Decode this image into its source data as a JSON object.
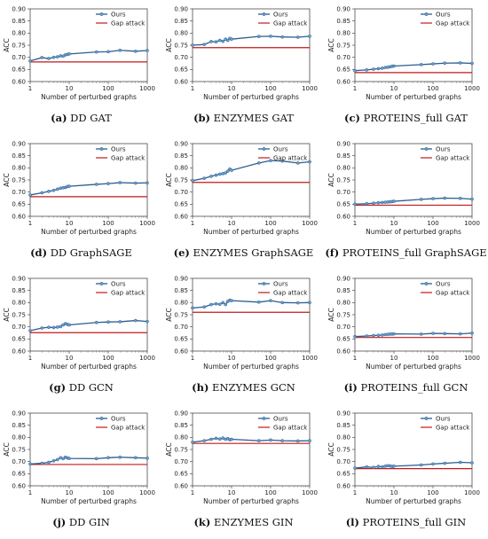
{
  "colors": {
    "ours": "#2b5d8a",
    "ours_marker": "#6a9fd0",
    "gap": "#c0191c"
  },
  "chart_data": [
    {
      "type": "line",
      "letter": "(a)",
      "caption": "DD GAT",
      "xlabel": "Number of perturbed graphs",
      "ylabel": "ACC",
      "xscale": "log",
      "xlim": [
        1,
        1000
      ],
      "ylim": [
        0.6,
        0.9
      ],
      "yticks": [
        "0.60",
        "0.65",
        "0.70",
        "0.75",
        "0.80",
        "0.85",
        "0.90"
      ],
      "xticks": [
        "1",
        "10",
        "100",
        "1000"
      ],
      "legend": "top-right",
      "series": [
        {
          "name": "Ours",
          "x": [
            1,
            2,
            3,
            4,
            5,
            6,
            7,
            8,
            9,
            10,
            50,
            100,
            200,
            500,
            1000
          ],
          "y": [
            0.685,
            0.699,
            0.695,
            0.7,
            0.702,
            0.706,
            0.705,
            0.71,
            0.712,
            0.714,
            0.722,
            0.723,
            0.729,
            0.725,
            0.728
          ]
        },
        {
          "name": "Gap attack",
          "x": [
            1,
            1000
          ],
          "y": [
            0.681,
            0.681
          ]
        }
      ]
    },
    {
      "type": "line",
      "letter": "(b)",
      "caption": "ENZYMES GAT",
      "xlabel": "Number of perturbed graphs",
      "ylabel": "ACC",
      "xscale": "log",
      "xlim": [
        1,
        1000
      ],
      "ylim": [
        0.6,
        0.9
      ],
      "yticks": [
        "0.60",
        "0.65",
        "0.70",
        "0.75",
        "0.80",
        "0.85",
        "0.90"
      ],
      "xticks": [
        "1",
        "10",
        "100",
        "1000"
      ],
      "legend": "top-right",
      "series": [
        {
          "name": "Ours",
          "x": [
            1,
            2,
            3,
            4,
            5,
            6,
            7,
            8,
            9,
            10,
            50,
            100,
            200,
            500,
            1000
          ],
          "y": [
            0.75,
            0.753,
            0.765,
            0.764,
            0.77,
            0.766,
            0.775,
            0.77,
            0.778,
            0.775,
            0.786,
            0.787,
            0.784,
            0.783,
            0.787
          ]
        },
        {
          "name": "Gap attack",
          "x": [
            1,
            1000
          ],
          "y": [
            0.74,
            0.74
          ]
        }
      ]
    },
    {
      "type": "line",
      "letter": "(c)",
      "caption": "PROTEINS_full GAT",
      "xlabel": "Number of perturbed graphs",
      "ylabel": "ACC",
      "xscale": "log",
      "xlim": [
        1,
        1000
      ],
      "ylim": [
        0.6,
        0.9
      ],
      "yticks": [
        "0.60",
        "0.65",
        "0.70",
        "0.75",
        "0.80",
        "0.85",
        "0.90"
      ],
      "xticks": [
        "1",
        "10",
        "100",
        "1000"
      ],
      "legend": "top-right",
      "series": [
        {
          "name": "Ours",
          "x": [
            1,
            2,
            3,
            4,
            5,
            6,
            7,
            8,
            9,
            10,
            50,
            100,
            200,
            500,
            1000
          ],
          "y": [
            0.645,
            0.648,
            0.651,
            0.653,
            0.655,
            0.658,
            0.659,
            0.661,
            0.663,
            0.664,
            0.67,
            0.673,
            0.676,
            0.677,
            0.675
          ]
        },
        {
          "name": "Gap attack",
          "x": [
            1,
            1000
          ],
          "y": [
            0.637,
            0.637
          ]
        }
      ]
    },
    {
      "type": "line",
      "letter": "(d)",
      "caption": "DD GraphSAGE",
      "xlabel": "Number of perturbed graphs",
      "ylabel": "ACC",
      "xscale": "log",
      "xlim": [
        1,
        1000
      ],
      "ylim": [
        0.6,
        0.9
      ],
      "yticks": [
        "0.60",
        "0.65",
        "0.70",
        "0.75",
        "0.80",
        "0.85",
        "0.90"
      ],
      "xticks": [
        "1",
        "10",
        "100",
        "1000"
      ],
      "legend": "top-right",
      "series": [
        {
          "name": "Ours",
          "x": [
            1,
            2,
            3,
            4,
            5,
            6,
            7,
            8,
            9,
            10,
            50,
            100,
            200,
            500,
            1000
          ],
          "y": [
            0.688,
            0.697,
            0.703,
            0.707,
            0.712,
            0.716,
            0.718,
            0.719,
            0.723,
            0.724,
            0.732,
            0.735,
            0.739,
            0.737,
            0.738
          ]
        },
        {
          "name": "Gap attack",
          "x": [
            1,
            1000
          ],
          "y": [
            0.681,
            0.681
          ]
        }
      ]
    },
    {
      "type": "line",
      "letter": "(e)",
      "caption": "ENZYMES GraphSAGE",
      "xlabel": "Number of perturbed graphs",
      "ylabel": "ACC",
      "xscale": "log",
      "xlim": [
        1,
        1000
      ],
      "ylim": [
        0.6,
        0.9
      ],
      "yticks": [
        "0.60",
        "0.65",
        "0.70",
        "0.75",
        "0.80",
        "0.85",
        "0.90"
      ],
      "xticks": [
        "1",
        "10",
        "100",
        "1000"
      ],
      "legend": "top-right",
      "series": [
        {
          "name": "Ours",
          "x": [
            1,
            2,
            3,
            4,
            5,
            6,
            7,
            8,
            9,
            10,
            50,
            100,
            200,
            500,
            1000
          ],
          "y": [
            0.747,
            0.757,
            0.765,
            0.77,
            0.774,
            0.776,
            0.779,
            0.786,
            0.795,
            0.79,
            0.82,
            0.83,
            0.828,
            0.82,
            0.825
          ]
        },
        {
          "name": "Gap attack",
          "x": [
            1,
            1000
          ],
          "y": [
            0.74,
            0.74
          ]
        }
      ]
    },
    {
      "type": "line",
      "letter": "(f)",
      "caption": "PROTEINS_full GraphSAGE",
      "xlabel": "Number of perturbed graphs",
      "ylabel": "ACC",
      "xscale": "log",
      "xlim": [
        1,
        1000
      ],
      "ylim": [
        0.6,
        0.9
      ],
      "yticks": [
        "0.60",
        "0.65",
        "0.70",
        "0.75",
        "0.80",
        "0.85",
        "0.90"
      ],
      "xticks": [
        "1",
        "10",
        "100",
        "1000"
      ],
      "legend": "top-right",
      "series": [
        {
          "name": "Ours",
          "x": [
            1,
            2,
            3,
            4,
            5,
            6,
            7,
            8,
            9,
            10,
            50,
            100,
            200,
            500,
            1000
          ],
          "y": [
            0.65,
            0.652,
            0.654,
            0.656,
            0.657,
            0.658,
            0.659,
            0.66,
            0.661,
            0.662,
            0.67,
            0.673,
            0.675,
            0.674,
            0.671
          ]
        },
        {
          "name": "Gap attack",
          "x": [
            1,
            1000
          ],
          "y": [
            0.646,
            0.646
          ]
        }
      ]
    },
    {
      "type": "line",
      "letter": "(g)",
      "caption": "DD GCN",
      "xlabel": "Number of perturbed graphs",
      "ylabel": "ACC",
      "xscale": "log",
      "xlim": [
        1,
        1000
      ],
      "ylim": [
        0.6,
        0.9
      ],
      "yticks": [
        "0.60",
        "0.65",
        "0.70",
        "0.75",
        "0.80",
        "0.85",
        "0.90"
      ],
      "xticks": [
        "1",
        "10",
        "100",
        "1000"
      ],
      "legend": "top-right",
      "series": [
        {
          "name": "Ours",
          "x": [
            1,
            2,
            3,
            4,
            5,
            6,
            7,
            8,
            9,
            10,
            50,
            100,
            200,
            500,
            1000
          ],
          "y": [
            0.684,
            0.695,
            0.698,
            0.697,
            0.699,
            0.701,
            0.708,
            0.713,
            0.71,
            0.708,
            0.718,
            0.72,
            0.721,
            0.726,
            0.722
          ]
        },
        {
          "name": "Gap attack",
          "x": [
            1,
            1000
          ],
          "y": [
            0.676,
            0.676
          ]
        }
      ]
    },
    {
      "type": "line",
      "letter": "(h)",
      "caption": "ENZYMES GCN",
      "xlabel": "Number of perturbed graphs",
      "ylabel": "ACC",
      "xscale": "log",
      "xlim": [
        1,
        1000
      ],
      "ylim": [
        0.6,
        0.9
      ],
      "yticks": [
        "0.60",
        "0.65",
        "0.70",
        "0.75",
        "0.80",
        "0.85",
        "0.90"
      ],
      "xticks": [
        "1",
        "10",
        "100",
        "1000"
      ],
      "legend": "top-right",
      "series": [
        {
          "name": "Ours",
          "x": [
            1,
            2,
            3,
            4,
            5,
            6,
            7,
            8,
            9,
            10,
            50,
            100,
            200,
            500,
            1000
          ],
          "y": [
            0.778,
            0.782,
            0.792,
            0.795,
            0.793,
            0.8,
            0.792,
            0.805,
            0.81,
            0.808,
            0.802,
            0.808,
            0.8,
            0.799,
            0.8
          ]
        },
        {
          "name": "Gap attack",
          "x": [
            1,
            1000
          ],
          "y": [
            0.76,
            0.76
          ]
        }
      ]
    },
    {
      "type": "line",
      "letter": "(i)",
      "caption": "PROTEINS_full GCN",
      "xlabel": "Number of perturbed graphs",
      "ylabel": "ACC",
      "xscale": "log",
      "xlim": [
        1,
        1000
      ],
      "ylim": [
        0.6,
        0.9
      ],
      "yticks": [
        "0.60",
        "0.65",
        "0.70",
        "0.75",
        "0.80",
        "0.85",
        "0.90"
      ],
      "xticks": [
        "1",
        "10",
        "100",
        "1000"
      ],
      "legend": "top-right",
      "series": [
        {
          "name": "Ours",
          "x": [
            1,
            2,
            3,
            4,
            5,
            6,
            7,
            8,
            9,
            10,
            50,
            100,
            200,
            500,
            1000
          ],
          "y": [
            0.66,
            0.662,
            0.664,
            0.665,
            0.666,
            0.668,
            0.669,
            0.67,
            0.67,
            0.671,
            0.67,
            0.673,
            0.672,
            0.671,
            0.674
          ]
        },
        {
          "name": "Gap attack",
          "x": [
            1,
            1000
          ],
          "y": [
            0.656,
            0.656
          ]
        }
      ]
    },
    {
      "type": "line",
      "letter": "(j)",
      "caption": "DD GIN",
      "xlabel": "Number of perturbed graphs",
      "ylabel": "ACC",
      "xscale": "log",
      "xlim": [
        1,
        1000
      ],
      "ylim": [
        0.6,
        0.9
      ],
      "yticks": [
        "0.60",
        "0.65",
        "0.70",
        "0.75",
        "0.80",
        "0.85",
        "0.90"
      ],
      "xticks": [
        "1",
        "10",
        "100",
        "1000"
      ],
      "legend": "top-right",
      "series": [
        {
          "name": "Ours",
          "x": [
            1,
            2,
            3,
            4,
            5,
            6,
            7,
            8,
            9,
            10,
            50,
            100,
            200,
            500,
            1000
          ],
          "y": [
            0.69,
            0.693,
            0.697,
            0.703,
            0.708,
            0.716,
            0.712,
            0.718,
            0.715,
            0.713,
            0.712,
            0.716,
            0.718,
            0.716,
            0.714
          ]
        },
        {
          "name": "Gap attack",
          "x": [
            1,
            1000
          ],
          "y": [
            0.688,
            0.688
          ]
        }
      ]
    },
    {
      "type": "line",
      "letter": "(k)",
      "caption": "ENZYMES GIN",
      "xlabel": "Number of perturbed graphs",
      "ylabel": "ACC",
      "xscale": "log",
      "xlim": [
        1,
        1000
      ],
      "ylim": [
        0.6,
        0.9
      ],
      "yticks": [
        "0.60",
        "0.65",
        "0.70",
        "0.75",
        "0.80",
        "0.85",
        "0.90"
      ],
      "xticks": [
        "1",
        "10",
        "100",
        "1000"
      ],
      "legend": "top-right",
      "series": [
        {
          "name": "Ours",
          "x": [
            1,
            2,
            3,
            4,
            5,
            6,
            7,
            8,
            9,
            10,
            50,
            100,
            200,
            500,
            1000
          ],
          "y": [
            0.78,
            0.786,
            0.792,
            0.796,
            0.793,
            0.797,
            0.792,
            0.795,
            0.79,
            0.792,
            0.786,
            0.789,
            0.786,
            0.785,
            0.786
          ]
        },
        {
          "name": "Gap attack",
          "x": [
            1,
            1000
          ],
          "y": [
            0.775,
            0.775
          ]
        }
      ]
    },
    {
      "type": "line",
      "letter": "(l)",
      "caption": "PROTEINS_full GIN",
      "xlabel": "Number of perturbed graphs",
      "ylabel": "ACC",
      "xscale": "log",
      "xlim": [
        1,
        1000
      ],
      "ylim": [
        0.6,
        0.9
      ],
      "yticks": [
        "0.60",
        "0.65",
        "0.70",
        "0.75",
        "0.80",
        "0.85",
        "0.90"
      ],
      "xticks": [
        "1",
        "10",
        "100",
        "1000"
      ],
      "legend": "top-right",
      "series": [
        {
          "name": "Ours",
          "x": [
            1,
            2,
            3,
            4,
            5,
            6,
            7,
            8,
            9,
            10,
            50,
            100,
            200,
            500,
            1000
          ],
          "y": [
            0.673,
            0.678,
            0.676,
            0.68,
            0.678,
            0.681,
            0.683,
            0.682,
            0.68,
            0.681,
            0.686,
            0.69,
            0.693,
            0.697,
            0.695
          ]
        },
        {
          "name": "Gap attack",
          "x": [
            1,
            1000
          ],
          "y": [
            0.671,
            0.671
          ]
        }
      ]
    }
  ]
}
